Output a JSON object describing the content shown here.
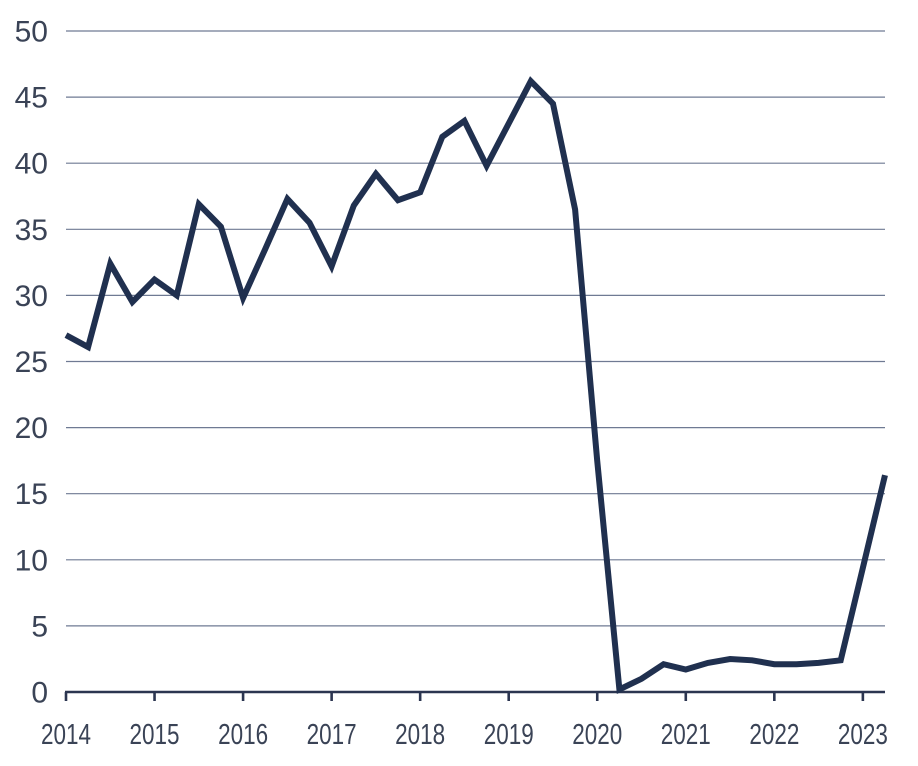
{
  "chart_data": {
    "type": "line",
    "title": "",
    "legend": {
      "visible": false
    },
    "grid": {
      "horizontal": true,
      "vertical": false
    },
    "x_labels": [
      "2014 Q1",
      "2014 Q2",
      "2014 Q3",
      "2014 Q4",
      "2015 Q1",
      "2015 Q2",
      "2015 Q3",
      "2015 Q4",
      "2016 Q1",
      "2016 Q2",
      "2016 Q3",
      "2016 Q4",
      "2017 Q1",
      "2017 Q2",
      "2017 Q3",
      "2017 Q4",
      "2018 Q1",
      "2018 Q2",
      "2018 Q3",
      "2018 Q4",
      "2019 Q1",
      "2019 Q2",
      "2019 Q3",
      "2019 Q4",
      "2020 Q1",
      "2020 Q2",
      "2020 Q3",
      "2020 Q4",
      "2021 Q1",
      "2021 Q2",
      "2021 Q3",
      "2021 Q4",
      "2022 Q1",
      "2022 Q2",
      "2022 Q3",
      "2022 Q4",
      "2023 Q1",
      "2023 Q2"
    ],
    "series": [
      {
        "name": "value",
        "values": [
          27.0,
          26.1,
          32.4,
          29.5,
          31.2,
          30.0,
          36.9,
          35.2,
          29.8,
          33.5,
          37.3,
          35.5,
          32.2,
          36.8,
          39.2,
          37.2,
          37.8,
          42.0,
          43.2,
          39.8,
          43.0,
          46.2,
          44.5,
          36.5,
          17.5,
          0.2,
          1.0,
          2.1,
          1.7,
          2.2,
          2.5,
          2.4,
          2.1,
          2.1,
          2.2,
          2.4,
          9.4,
          16.4
        ]
      }
    ],
    "x_axis": {
      "tick_labels": [
        "2014",
        "2015",
        "2016",
        "2017",
        "2018",
        "2019",
        "2020",
        "2021",
        "2022",
        "2023"
      ],
      "range_years": [
        2014,
        2023.25
      ]
    },
    "y_axis": {
      "tick_labels": [
        "0",
        "5",
        "10",
        "15",
        "20",
        "25",
        "30",
        "35",
        "40",
        "45",
        "50"
      ],
      "ticks": [
        0,
        5,
        10,
        15,
        20,
        25,
        30,
        35,
        40,
        45,
        50
      ],
      "range": [
        0,
        50
      ]
    },
    "colors": {
      "line": "#20304f",
      "grid": "#6f7a93",
      "axis": "#2b3550",
      "tick_labels": "#3a4356",
      "background": "#ffffff"
    }
  }
}
